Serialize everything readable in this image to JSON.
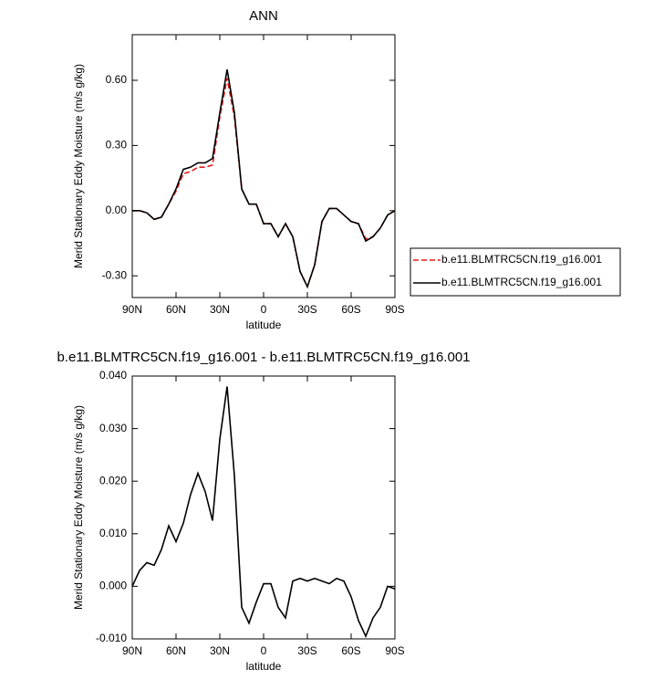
{
  "chart_data": [
    {
      "type": "line",
      "title": "ANN",
      "xlabel": "latitude",
      "ylabel": "Merid Stationary Eddy Moisture (m/s g/kg)",
      "x": [
        90,
        85,
        80,
        75,
        70,
        65,
        60,
        55,
        50,
        45,
        40,
        35,
        30,
        25,
        20,
        15,
        10,
        5,
        0,
        -5,
        -10,
        -15,
        -20,
        -25,
        -30,
        -35,
        -40,
        -45,
        -50,
        -55,
        -60,
        -65,
        -70,
        -75,
        -80,
        -85,
        -90
      ],
      "xlim": [
        90,
        -90
      ],
      "xticks": [
        {
          "value": 90,
          "label": "90N"
        },
        {
          "value": 60,
          "label": "60N"
        },
        {
          "value": 30,
          "label": "30N"
        },
        0,
        {
          "value": -30,
          "label": "30S"
        },
        {
          "value": -60,
          "label": "60S"
        },
        {
          "value": -90,
          "label": "90S"
        }
      ],
      "ylim": [
        -0.4,
        0.81
      ],
      "yticks": [
        {
          "value": -0.3,
          "label": "-0.30"
        },
        {
          "value": 0,
          "label": "0.00"
        },
        {
          "value": 0.3,
          "label": "0.30"
        },
        {
          "value": 0.6,
          "label": "0.60"
        }
      ],
      "legend": "right",
      "series": [
        {
          "name": "b.e11.BLMTRC5CN.f19_g16.001",
          "color": "#e31a1c",
          "linestyle": "dashed",
          "values": [
            0.0,
            0.0,
            -0.01,
            -0.04,
            -0.03,
            0.03,
            0.09,
            0.17,
            0.18,
            0.2,
            0.2,
            0.21,
            0.43,
            0.61,
            0.43,
            0.1,
            0.03,
            0.03,
            -0.06,
            -0.06,
            -0.12,
            -0.06,
            -0.12,
            -0.28,
            -0.35,
            -0.25,
            -0.05,
            0.01,
            0.01,
            -0.02,
            -0.05,
            -0.06,
            -0.13,
            -0.12,
            -0.08,
            -0.02,
            0.0
          ]
        },
        {
          "name": "b.e11.BLMTRC5CN.f19_g16.001",
          "color": "#000000",
          "linestyle": "solid",
          "values": [
            0.0,
            0.0,
            -0.01,
            -0.04,
            -0.03,
            0.03,
            0.1,
            0.19,
            0.2,
            0.22,
            0.22,
            0.24,
            0.45,
            0.65,
            0.45,
            0.1,
            0.03,
            0.03,
            -0.06,
            -0.06,
            -0.12,
            -0.06,
            -0.12,
            -0.28,
            -0.35,
            -0.25,
            -0.05,
            0.01,
            0.01,
            -0.02,
            -0.05,
            -0.06,
            -0.14,
            -0.12,
            -0.08,
            -0.02,
            0.0
          ]
        }
      ]
    },
    {
      "type": "line",
      "title": "b.e11.BLMTRC5CN.f19_g16.001 - b.e11.BLMTRC5CN.f19_g16.001",
      "xlabel": "latitude",
      "ylabel": "Merid Stationary Eddy Moisture (m/s g/kg)",
      "x": [
        90,
        85,
        80,
        75,
        70,
        65,
        60,
        55,
        50,
        45,
        40,
        35,
        30,
        25,
        20,
        15,
        10,
        5,
        0,
        -5,
        -10,
        -15,
        -20,
        -25,
        -30,
        -35,
        -40,
        -45,
        -50,
        -55,
        -60,
        -65,
        -70,
        -75,
        -80,
        -85,
        -90
      ],
      "xlim": [
        90,
        -90
      ],
      "xticks": [
        {
          "value": 90,
          "label": "90N"
        },
        {
          "value": 60,
          "label": "60N"
        },
        {
          "value": 30,
          "label": "30N"
        },
        0,
        {
          "value": -30,
          "label": "30S"
        },
        {
          "value": -60,
          "label": "60S"
        },
        {
          "value": -90,
          "label": "90S"
        }
      ],
      "ylim": [
        -0.01,
        0.04
      ],
      "yticks": [
        {
          "value": -0.01,
          "label": "-0.010"
        },
        {
          "value": 0,
          "label": "0.000"
        },
        {
          "value": 0.01,
          "label": "0.010"
        },
        {
          "value": 0.02,
          "label": "0.020"
        },
        {
          "value": 0.03,
          "label": "0.030"
        },
        {
          "value": 0.04,
          "label": "0.040"
        }
      ],
      "color": "#000000",
      "values": [
        0.0,
        0.003,
        0.0045,
        0.004,
        0.007,
        0.0115,
        0.0085,
        0.012,
        0.0175,
        0.0215,
        0.018,
        0.0125,
        0.028,
        0.038,
        0.021,
        -0.004,
        -0.007,
        -0.003,
        0.0005,
        0.0005,
        -0.004,
        -0.006,
        0.001,
        0.0015,
        0.001,
        0.0015,
        0.001,
        0.0005,
        0.0015,
        0.001,
        -0.002,
        -0.0065,
        -0.0095,
        -0.006,
        -0.004,
        0.0,
        -0.0005
      ]
    }
  ]
}
